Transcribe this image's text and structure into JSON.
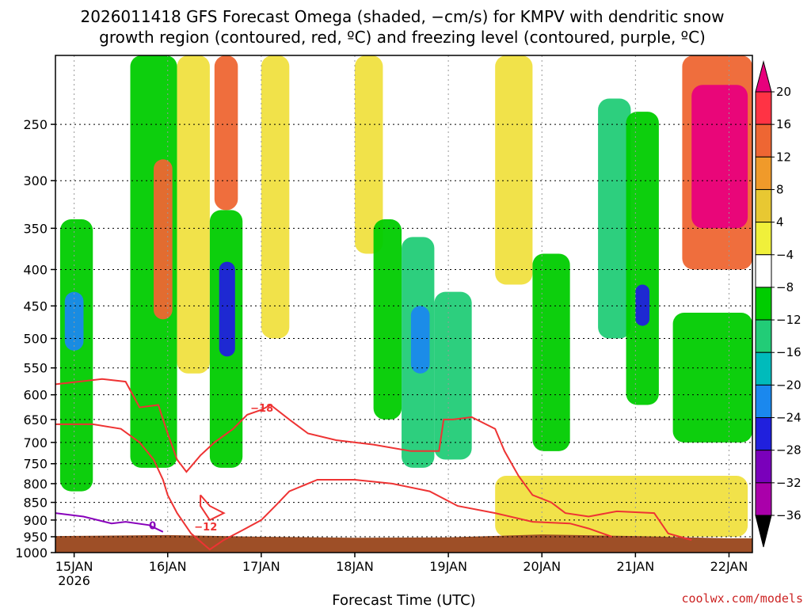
{
  "chart_data": {
    "type": "heatmap",
    "title_line1": "2026011418 GFS Forecast Omega (shaded, −cm/s) for KMPV with dendritic snow",
    "title_line2": "growth region (contoured, red, ºC) and freezing level (contoured, purple, ºC)",
    "xlabel": "Forecast Time (UTC)",
    "ylabel": "",
    "x_ticks": [
      "15JAN",
      "16JAN",
      "17JAN",
      "18JAN",
      "19JAN",
      "20JAN",
      "21JAN",
      "22JAN"
    ],
    "x_year": "2026",
    "y_ticks": [
      "250",
      "300",
      "350",
      "400",
      "450",
      "500",
      "550",
      "600",
      "650",
      "700",
      "750",
      "800",
      "850",
      "900",
      "950",
      "1000"
    ],
    "y_values": [
      250,
      300,
      350,
      400,
      450,
      500,
      550,
      600,
      650,
      700,
      750,
      800,
      850,
      900,
      950,
      1000
    ],
    "ylim": [
      200,
      1000
    ],
    "xlim_days": [
      -0.2,
      7.25
    ],
    "colorbar_labels": [
      "20",
      "16",
      "12",
      "8",
      "4",
      "−4",
      "−8",
      "−12",
      "−16",
      "−20",
      "−24",
      "−28",
      "−32",
      "−36"
    ],
    "colorbar_colors": [
      "#e8007c",
      "#ff3344",
      "#ee6633",
      "#f09a2a",
      "#e8c832",
      "#f0f03a",
      "#ffffff",
      "#00cc00",
      "#22cc77",
      "#00bbbb",
      "#1a88ee",
      "#2020dd",
      "#7a00bb",
      "#aa00aa",
      "#999999",
      "#000000"
    ],
    "shaded_regions": [
      {
        "t0": -0.15,
        "t1": 0.2,
        "p0": 340,
        "p1": 820,
        "level": -8
      },
      {
        "t0": -0.1,
        "t1": 0.1,
        "p0": 430,
        "p1": 520,
        "level": -20
      },
      {
        "t0": 0.6,
        "t1": 1.1,
        "p0": 200,
        "p1": 760,
        "level": -8
      },
      {
        "t0": 0.85,
        "t1": 1.05,
        "p0": 280,
        "p1": 470,
        "level": 12
      },
      {
        "t0": 1.1,
        "t1": 1.45,
        "p0": 200,
        "p1": 560,
        "level": 4
      },
      {
        "t0": 1.45,
        "t1": 1.8,
        "p0": 330,
        "p1": 760,
        "level": -8
      },
      {
        "t0": 1.55,
        "t1": 1.72,
        "p0": 390,
        "p1": 530,
        "level": -24
      },
      {
        "t0": 1.5,
        "t1": 1.75,
        "p0": 200,
        "p1": 330,
        "level": 12
      },
      {
        "t0": 2.0,
        "t1": 2.3,
        "p0": 200,
        "p1": 500,
        "level": 4
      },
      {
        "t0": 3.0,
        "t1": 3.3,
        "p0": 200,
        "p1": 380,
        "level": 4
      },
      {
        "t0": 3.2,
        "t1": 3.5,
        "p0": 340,
        "p1": 650,
        "level": -8
      },
      {
        "t0": 3.5,
        "t1": 3.85,
        "p0": 360,
        "p1": 760,
        "level": -12
      },
      {
        "t0": 3.6,
        "t1": 3.8,
        "p0": 450,
        "p1": 560,
        "level": -20
      },
      {
        "t0": 3.85,
        "t1": 4.25,
        "p0": 430,
        "p1": 740,
        "level": -12
      },
      {
        "t0": 4.5,
        "t1": 4.9,
        "p0": 200,
        "p1": 420,
        "level": 4
      },
      {
        "t0": 4.9,
        "t1": 5.3,
        "p0": 380,
        "p1": 720,
        "level": -8
      },
      {
        "t0": 5.6,
        "t1": 5.95,
        "p0": 230,
        "p1": 500,
        "level": -12
      },
      {
        "t0": 5.9,
        "t1": 6.25,
        "p0": 240,
        "p1": 620,
        "level": -8
      },
      {
        "t0": 6.0,
        "t1": 6.15,
        "p0": 420,
        "p1": 480,
        "level": -24
      },
      {
        "t0": 6.4,
        "t1": 7.25,
        "p0": 460,
        "p1": 700,
        "level": -8
      },
      {
        "t0": 6.5,
        "t1": 7.25,
        "p0": 200,
        "p1": 400,
        "level": 12
      },
      {
        "t0": 6.6,
        "t1": 7.2,
        "p0": 220,
        "p1": 350,
        "level": 20
      },
      {
        "t0": 4.5,
        "t1": 7.2,
        "p0": 780,
        "p1": 950,
        "level": 4
      }
    ],
    "dgz_contours": [
      {
        "label": "−18",
        "points": [
          [
            -0.2,
            580
          ],
          [
            0.3,
            570
          ],
          [
            0.55,
            575
          ],
          [
            0.7,
            625
          ],
          [
            0.9,
            620
          ],
          [
            1.0,
            680
          ],
          [
            1.1,
            740
          ],
          [
            1.2,
            770
          ],
          [
            1.35,
            730
          ],
          [
            1.5,
            700
          ],
          [
            1.7,
            670
          ],
          [
            1.85,
            640
          ],
          [
            2.0,
            630
          ],
          [
            2.1,
            620
          ],
          [
            2.3,
            650
          ],
          [
            2.5,
            680
          ],
          [
            2.8,
            695
          ],
          [
            3.2,
            705
          ],
          [
            3.6,
            720
          ],
          [
            3.9,
            720
          ],
          [
            3.95,
            650
          ],
          [
            4.05,
            650
          ],
          [
            4.25,
            645
          ],
          [
            4.5,
            670
          ],
          [
            4.6,
            720
          ],
          [
            4.75,
            780
          ],
          [
            4.9,
            830
          ],
          [
            5.1,
            850
          ],
          [
            5.25,
            880
          ],
          [
            5.5,
            890
          ],
          [
            5.8,
            875
          ],
          [
            6.2,
            880
          ],
          [
            6.35,
            940
          ],
          [
            6.6,
            960
          ]
        ]
      },
      {
        "label": "−12",
        "points": [
          [
            -0.2,
            660
          ],
          [
            0.2,
            660
          ],
          [
            0.5,
            670
          ],
          [
            0.7,
            700
          ],
          [
            0.85,
            740
          ],
          [
            0.95,
            790
          ],
          [
            1.0,
            830
          ],
          [
            1.1,
            880
          ],
          [
            1.25,
            940
          ],
          [
            1.45,
            990
          ],
          [
            1.6,
            960
          ],
          [
            1.8,
            930
          ],
          [
            2.0,
            900
          ],
          [
            2.15,
            860
          ],
          [
            2.3,
            820
          ],
          [
            2.6,
            790
          ],
          [
            3.0,
            790
          ],
          [
            3.4,
            800
          ],
          [
            3.8,
            820
          ],
          [
            4.1,
            860
          ],
          [
            4.5,
            880
          ],
          [
            4.9,
            905
          ],
          [
            5.3,
            910
          ],
          [
            5.5,
            925
          ],
          [
            5.75,
            950
          ]
        ]
      },
      {
        "label": "",
        "points": [
          [
            1.35,
            830
          ],
          [
            1.45,
            860
          ],
          [
            1.6,
            880
          ],
          [
            1.45,
            900
          ],
          [
            1.35,
            860
          ],
          [
            1.35,
            830
          ]
        ]
      }
    ],
    "freezing_contour": {
      "label": "0",
      "points": [
        [
          -0.2,
          880
        ],
        [
          0.1,
          890
        ],
        [
          0.25,
          900
        ],
        [
          0.4,
          910
        ],
        [
          0.55,
          905
        ],
        [
          0.8,
          915
        ],
        [
          0.95,
          935
        ]
      ]
    }
  },
  "credit": "coolwx.com/models"
}
